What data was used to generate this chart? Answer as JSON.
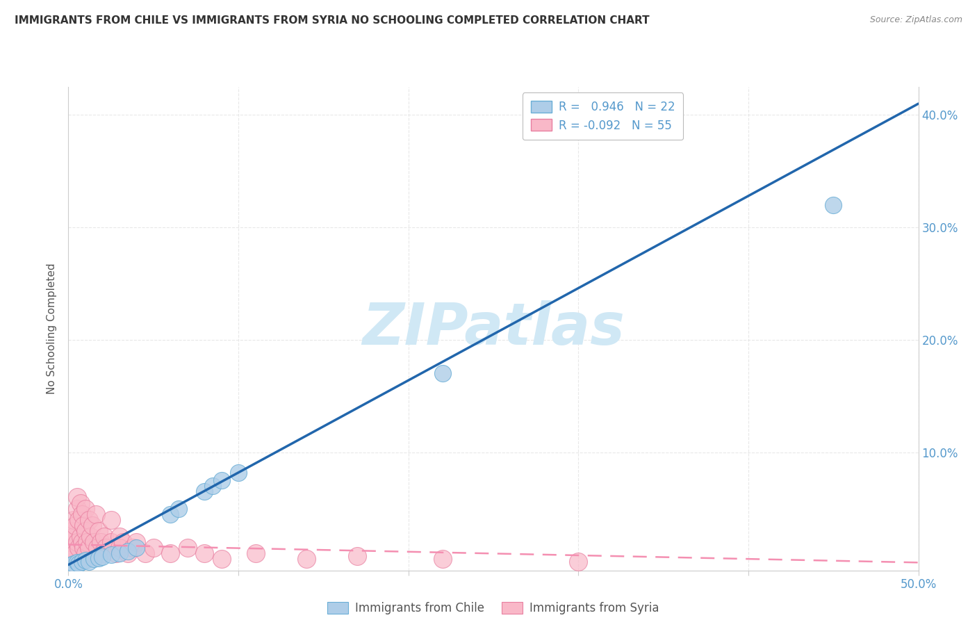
{
  "title": "IMMIGRANTS FROM CHILE VS IMMIGRANTS FROM SYRIA NO SCHOOLING COMPLETED CORRELATION CHART",
  "source": "Source: ZipAtlas.com",
  "ylabel": "No Schooling Completed",
  "xlim": [
    0.0,
    0.5
  ],
  "ylim": [
    -0.005,
    0.425
  ],
  "chile_R": 0.946,
  "chile_N": 22,
  "syria_R": -0.092,
  "syria_N": 55,
  "chile_color": "#aecde8",
  "syria_color": "#f9b8c8",
  "chile_edge_color": "#6aaed6",
  "syria_edge_color": "#e87fa0",
  "chile_line_color": "#2166ac",
  "syria_line_color": "#f48fb1",
  "legend_chile_label": "Immigrants from Chile",
  "legend_syria_label": "Immigrants from Syria",
  "watermark": "ZIPatlas",
  "watermark_color": "#d0e8f5",
  "chile_scatter_x": [
    0.001,
    0.003,
    0.005,
    0.006,
    0.008,
    0.01,
    0.012,
    0.015,
    0.018,
    0.02,
    0.025,
    0.03,
    0.035,
    0.04,
    0.06,
    0.065,
    0.08,
    0.085,
    0.09,
    0.1,
    0.22,
    0.45
  ],
  "chile_scatter_y": [
    0.0,
    0.001,
    0.002,
    0.001,
    0.003,
    0.004,
    0.003,
    0.005,
    0.006,
    0.007,
    0.009,
    0.01,
    0.012,
    0.015,
    0.045,
    0.05,
    0.065,
    0.07,
    0.075,
    0.082,
    0.17,
    0.32
  ],
  "syria_scatter_x": [
    0.0,
    0.001,
    0.002,
    0.002,
    0.003,
    0.003,
    0.004,
    0.004,
    0.005,
    0.005,
    0.005,
    0.006,
    0.006,
    0.007,
    0.007,
    0.008,
    0.008,
    0.009,
    0.009,
    0.01,
    0.01,
    0.01,
    0.011,
    0.012,
    0.012,
    0.013,
    0.014,
    0.015,
    0.016,
    0.017,
    0.018,
    0.019,
    0.02,
    0.021,
    0.022,
    0.025,
    0.025,
    0.028,
    0.03,
    0.03,
    0.032,
    0.035,
    0.038,
    0.04,
    0.045,
    0.05,
    0.06,
    0.07,
    0.08,
    0.09,
    0.11,
    0.14,
    0.17,
    0.22,
    0.3
  ],
  "syria_scatter_y": [
    0.01,
    0.02,
    0.015,
    0.03,
    0.025,
    0.04,
    0.01,
    0.035,
    0.02,
    0.05,
    0.06,
    0.015,
    0.04,
    0.025,
    0.055,
    0.02,
    0.045,
    0.015,
    0.035,
    0.01,
    0.03,
    0.05,
    0.02,
    0.015,
    0.04,
    0.025,
    0.035,
    0.02,
    0.045,
    0.015,
    0.03,
    0.02,
    0.01,
    0.025,
    0.015,
    0.02,
    0.04,
    0.01,
    0.025,
    0.015,
    0.02,
    0.01,
    0.015,
    0.02,
    0.01,
    0.015,
    0.01,
    0.015,
    0.01,
    0.005,
    0.01,
    0.005,
    0.008,
    0.005,
    0.003
  ],
  "background_color": "#ffffff",
  "grid_color": "#e8e8e8",
  "grid_linestyle": "--",
  "axis_color": "#cccccc",
  "text_color": "#555555",
  "tick_color": "#5599cc"
}
